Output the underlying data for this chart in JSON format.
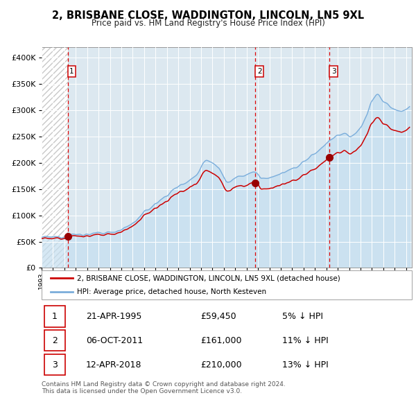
{
  "title": "2, BRISBANE CLOSE, WADDINGTON, LINCOLN, LN5 9XL",
  "subtitle": "Price paid vs. HM Land Registry's House Price Index (HPI)",
  "sale_color": "#cc0000",
  "hpi_color": "#7aaddb",
  "hpi_fill_color": "#c5dff0",
  "plot_bg_color": "#dce8f0",
  "dashed_line_color": "#dd0000",
  "legend_entries": [
    "2, BRISBANE CLOSE, WADDINGTON, LINCOLN, LN5 9XL (detached house)",
    "HPI: Average price, detached house, North Kesteven"
  ],
  "transactions": [
    {
      "num": 1,
      "date": "21-APR-1995",
      "price": 59450,
      "pct": "5%",
      "dir": "↓",
      "x_year": 1995.3
    },
    {
      "num": 2,
      "date": "06-OCT-2011",
      "price": 161000,
      "pct": "11%",
      "dir": "↓",
      "x_year": 2011.77
    },
    {
      "num": 3,
      "date": "12-APR-2018",
      "price": 210000,
      "pct": "13%",
      "dir": "↓",
      "x_year": 2018.28
    }
  ],
  "footer": "Contains HM Land Registry data © Crown copyright and database right 2024.\nThis data is licensed under the Open Government Licence v3.0.",
  "ylim": [
    0,
    420000
  ],
  "yticks": [
    0,
    50000,
    100000,
    150000,
    200000,
    250000,
    300000,
    350000,
    400000
  ],
  "xlim": [
    1993.0,
    2025.5
  ],
  "xticks": [
    1993,
    1994,
    1995,
    1996,
    1997,
    1998,
    1999,
    2000,
    2001,
    2002,
    2003,
    2004,
    2005,
    2006,
    2007,
    2008,
    2009,
    2010,
    2011,
    2012,
    2013,
    2014,
    2015,
    2016,
    2017,
    2018,
    2019,
    2020,
    2021,
    2022,
    2023,
    2024,
    2025
  ],
  "hpi_anchors_t": [
    1993.0,
    1995.0,
    1995.3,
    1996.0,
    1997.0,
    1998.0,
    1999.0,
    2000.0,
    2001.0,
    2002.0,
    2003.5,
    2005.0,
    2006.5,
    2007.5,
    2008.5,
    2009.3,
    2010.0,
    2010.8,
    2011.77,
    2012.3,
    2013.0,
    2014.0,
    2015.0,
    2016.0,
    2017.0,
    2018.28,
    2019.0,
    2019.5,
    2020.0,
    2020.5,
    2021.0,
    2021.5,
    2022.0,
    2022.5,
    2023.0,
    2023.5,
    2024.0,
    2024.5,
    2025.2
  ],
  "hpi_anchors_v": [
    58000,
    60000,
    62800,
    63500,
    64000,
    65500,
    68000,
    73000,
    85000,
    105000,
    130000,
    155000,
    175000,
    205000,
    192000,
    163000,
    170000,
    176000,
    182000,
    170000,
    172000,
    178000,
    188000,
    202000,
    218000,
    242000,
    252000,
    255000,
    250000,
    255000,
    268000,
    288000,
    318000,
    330000,
    315000,
    308000,
    302000,
    298000,
    305000
  ],
  "prop_anchors_t": [
    1993.0,
    1995.3,
    2011.77,
    2018.28,
    2025.2
  ],
  "prop_ratios": [
    0.952,
    0.952,
    0.888,
    0.869,
    0.869
  ]
}
